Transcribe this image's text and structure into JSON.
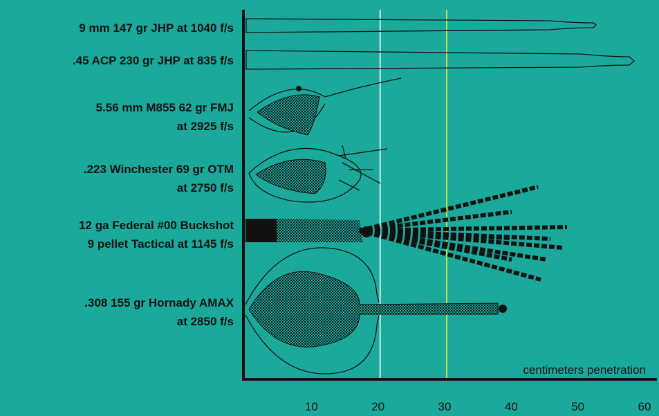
{
  "labels": [
    {
      "lines": [
        "9 mm 147 gr JHP at 1040 f/s"
      ]
    },
    {
      "lines": [
        ".45 ACP 230 gr JHP at 835 f/s"
      ]
    },
    {
      "lines": [
        "5.56 mm M855 62 gr FMJ",
        "at 2925 f/s"
      ]
    },
    {
      "lines": [
        ".223 Winchester 69 gr OTM",
        "at 2750 f/s"
      ]
    },
    {
      "lines": [
        "12 ga Federal #00 Buckshot",
        "9 pellet Tactical at 1145 f/s"
      ]
    },
    {
      "lines": [
        ".308 155 gr Hornady AMAX",
        "at 2850 f/s"
      ]
    }
  ],
  "axis": {
    "label": "centimeters penetration",
    "xlim": [
      0,
      60
    ],
    "xticks": [
      10,
      20,
      30,
      40,
      50,
      60
    ]
  },
  "reference_lines": [
    {
      "value": 20,
      "color": "#ffffff"
    },
    {
      "value": 30,
      "color": "#e6f03c"
    }
  ]
}
